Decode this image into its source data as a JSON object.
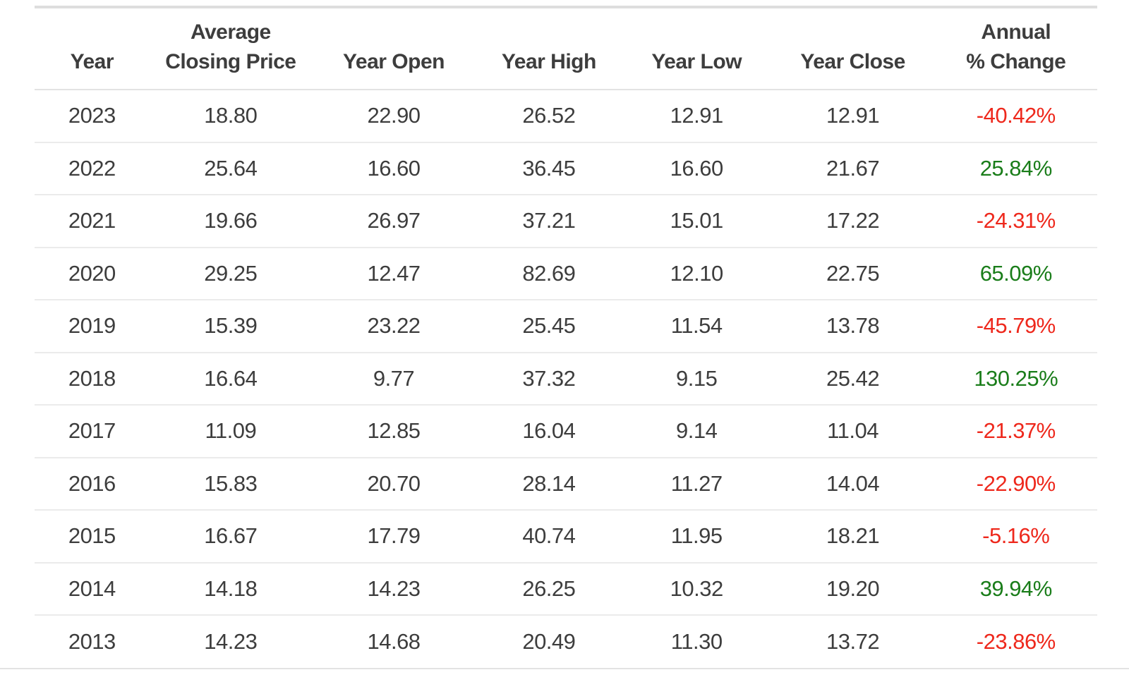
{
  "colors": {
    "text": "#3d3d3d",
    "positive": "#1a7d1a",
    "negative": "#ee281c",
    "divider": "#ebebeb",
    "top_border": "#dedede"
  },
  "table": {
    "header_lines": [
      [
        "Year"
      ],
      [
        "Average",
        "Closing Price"
      ],
      [
        "Year Open"
      ],
      [
        "Year High"
      ],
      [
        "Year Low"
      ],
      [
        "Year Close"
      ],
      [
        "Annual",
        "% Change"
      ]
    ]
  },
  "chart_data": {
    "type": "table",
    "columns": [
      "Year",
      "Average Closing Price",
      "Year Open",
      "Year High",
      "Year Low",
      "Year Close",
      "Annual % Change"
    ],
    "rows": [
      [
        "2023",
        "18.80",
        "22.90",
        "26.52",
        "12.91",
        "12.91",
        "-40.42%"
      ],
      [
        "2022",
        "25.64",
        "16.60",
        "36.45",
        "16.60",
        "21.67",
        "25.84%"
      ],
      [
        "2021",
        "19.66",
        "26.97",
        "37.21",
        "15.01",
        "17.22",
        "-24.31%"
      ],
      [
        "2020",
        "29.25",
        "12.47",
        "82.69",
        "12.10",
        "22.75",
        "65.09%"
      ],
      [
        "2019",
        "15.39",
        "23.22",
        "25.45",
        "11.54",
        "13.78",
        "-45.79%"
      ],
      [
        "2018",
        "16.64",
        "9.77",
        "37.32",
        "9.15",
        "25.42",
        "130.25%"
      ],
      [
        "2017",
        "11.09",
        "12.85",
        "16.04",
        "9.14",
        "11.04",
        "-21.37%"
      ],
      [
        "2016",
        "15.83",
        "20.70",
        "28.14",
        "11.27",
        "14.04",
        "-22.90%"
      ],
      [
        "2015",
        "16.67",
        "17.79",
        "40.74",
        "11.95",
        "18.21",
        "-5.16%"
      ],
      [
        "2014",
        "14.18",
        "14.23",
        "26.25",
        "10.32",
        "19.20",
        "39.94%"
      ],
      [
        "2013",
        "14.23",
        "14.68",
        "20.49",
        "11.30",
        "13.72",
        "-23.86%"
      ]
    ]
  }
}
